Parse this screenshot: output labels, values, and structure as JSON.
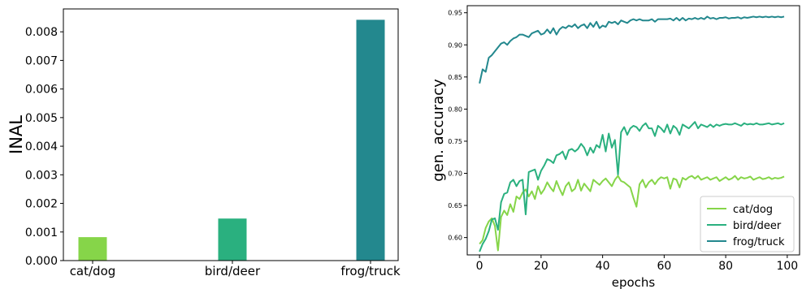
{
  "chart_data": [
    {
      "type": "bar",
      "title": "",
      "xlabel": "",
      "ylabel": "INAL",
      "categories": [
        "cat/dog",
        "bird/deer",
        "frog/truck"
      ],
      "values": [
        0.00082,
        0.00147,
        0.00842
      ],
      "colors": [
        "#86d549",
        "#2ab07f",
        "#23888e"
      ],
      "ylim": [
        0,
        0.0088
      ],
      "yticks": [
        0.0,
        0.001,
        0.002,
        0.003,
        0.004,
        0.005,
        0.006,
        0.007,
        0.008
      ],
      "ytick_labels": [
        "0.000",
        "0.001",
        "0.002",
        "0.003",
        "0.004",
        "0.005",
        "0.006",
        "0.007",
        "0.008"
      ],
      "grid": false
    },
    {
      "type": "line",
      "title": "",
      "xlabel": "epochs",
      "ylabel": "gen. accuracy",
      "xlim": [
        -4,
        104
      ],
      "ylim": [
        0.573,
        0.961
      ],
      "xticks": [
        0,
        20,
        40,
        60,
        80,
        100
      ],
      "xtick_labels": [
        "0",
        "20",
        "40",
        "60",
        "80",
        "100"
      ],
      "yticks": [
        0.6,
        0.65,
        0.7,
        0.75,
        0.8,
        0.85,
        0.9,
        0.95
      ],
      "ytick_labels": [
        "0.60",
        "0.65",
        "0.70",
        "0.75",
        "0.80",
        "0.85",
        "0.90",
        "0.95"
      ],
      "legend_position": "lower-right",
      "grid": false,
      "x": [
        0,
        1,
        2,
        3,
        4,
        5,
        6,
        7,
        8,
        9,
        10,
        11,
        12,
        13,
        14,
        15,
        16,
        17,
        18,
        19,
        20,
        21,
        22,
        23,
        24,
        25,
        26,
        27,
        28,
        29,
        30,
        31,
        32,
        33,
        34,
        35,
        36,
        37,
        38,
        39,
        40,
        41,
        42,
        43,
        44,
        45,
        46,
        47,
        48,
        49,
        50,
        51,
        52,
        53,
        54,
        55,
        56,
        57,
        58,
        59,
        60,
        61,
        62,
        63,
        64,
        65,
        66,
        67,
        68,
        69,
        70,
        71,
        72,
        73,
        74,
        75,
        76,
        77,
        78,
        79,
        80,
        81,
        82,
        83,
        84,
        85,
        86,
        87,
        88,
        89,
        90,
        91,
        92,
        93,
        94,
        95,
        96,
        97,
        98,
        99
      ],
      "series": [
        {
          "name": "cat/dog",
          "color": "#86d549",
          "values": [
            0.59,
            0.596,
            0.615,
            0.625,
            0.63,
            0.618,
            0.58,
            0.632,
            0.642,
            0.635,
            0.652,
            0.64,
            0.664,
            0.66,
            0.67,
            0.675,
            0.664,
            0.672,
            0.66,
            0.68,
            0.668,
            0.675,
            0.686,
            0.678,
            0.672,
            0.688,
            0.676,
            0.666,
            0.68,
            0.686,
            0.672,
            0.676,
            0.69,
            0.673,
            0.684,
            0.678,
            0.672,
            0.69,
            0.686,
            0.682,
            0.688,
            0.692,
            0.686,
            0.68,
            0.69,
            0.696,
            0.688,
            0.686,
            0.682,
            0.678,
            0.662,
            0.648,
            0.683,
            0.69,
            0.678,
            0.686,
            0.69,
            0.683,
            0.69,
            0.694,
            0.692,
            0.694,
            0.676,
            0.692,
            0.69,
            0.678,
            0.693,
            0.69,
            0.694,
            0.696,
            0.692,
            0.696,
            0.69,
            0.692,
            0.694,
            0.69,
            0.692,
            0.694,
            0.688,
            0.691,
            0.694,
            0.69,
            0.692,
            0.696,
            0.69,
            0.694,
            0.692,
            0.693,
            0.695,
            0.69,
            0.692,
            0.694,
            0.691,
            0.692,
            0.694,
            0.691,
            0.693,
            0.692,
            0.693,
            0.695
          ]
        },
        {
          "name": "bird/deer",
          "color": "#2ab07f",
          "values": [
            0.578,
            0.59,
            0.598,
            0.61,
            0.628,
            0.63,
            0.612,
            0.655,
            0.668,
            0.67,
            0.686,
            0.69,
            0.68,
            0.688,
            0.69,
            0.636,
            0.702,
            0.704,
            0.706,
            0.69,
            0.704,
            0.712,
            0.722,
            0.72,
            0.716,
            0.728,
            0.73,
            0.734,
            0.722,
            0.736,
            0.738,
            0.734,
            0.738,
            0.746,
            0.74,
            0.728,
            0.74,
            0.732,
            0.744,
            0.74,
            0.76,
            0.734,
            0.762,
            0.74,
            0.752,
            0.698,
            0.764,
            0.772,
            0.76,
            0.77,
            0.774,
            0.772,
            0.766,
            0.774,
            0.778,
            0.77,
            0.77,
            0.758,
            0.774,
            0.77,
            0.764,
            0.776,
            0.762,
            0.774,
            0.77,
            0.76,
            0.776,
            0.773,
            0.77,
            0.775,
            0.78,
            0.77,
            0.776,
            0.774,
            0.772,
            0.776,
            0.772,
            0.776,
            0.774,
            0.776,
            0.777,
            0.776,
            0.776,
            0.778,
            0.776,
            0.774,
            0.778,
            0.776,
            0.777,
            0.776,
            0.778,
            0.776,
            0.776,
            0.777,
            0.778,
            0.776,
            0.777,
            0.778,
            0.776,
            0.778
          ]
        },
        {
          "name": "frog/truck",
          "color": "#23888e",
          "values": [
            0.84,
            0.862,
            0.858,
            0.88,
            0.884,
            0.89,
            0.896,
            0.902,
            0.904,
            0.9,
            0.906,
            0.91,
            0.912,
            0.916,
            0.916,
            0.914,
            0.912,
            0.918,
            0.92,
            0.922,
            0.916,
            0.918,
            0.924,
            0.918,
            0.926,
            0.916,
            0.924,
            0.928,
            0.926,
            0.93,
            0.928,
            0.932,
            0.926,
            0.93,
            0.932,
            0.926,
            0.934,
            0.928,
            0.936,
            0.926,
            0.93,
            0.928,
            0.936,
            0.934,
            0.936,
            0.932,
            0.938,
            0.936,
            0.934,
            0.938,
            0.94,
            0.938,
            0.94,
            0.938,
            0.938,
            0.938,
            0.94,
            0.936,
            0.94,
            0.94,
            0.94,
            0.94,
            0.941,
            0.938,
            0.942,
            0.938,
            0.942,
            0.938,
            0.941,
            0.94,
            0.942,
            0.94,
            0.942,
            0.94,
            0.944,
            0.941,
            0.942,
            0.94,
            0.942,
            0.942,
            0.943,
            0.941,
            0.942,
            0.942,
            0.943,
            0.941,
            0.943,
            0.942,
            0.943,
            0.944,
            0.943,
            0.944,
            0.943,
            0.944,
            0.943,
            0.944,
            0.943,
            0.944,
            0.943,
            0.944
          ]
        }
      ]
    }
  ]
}
